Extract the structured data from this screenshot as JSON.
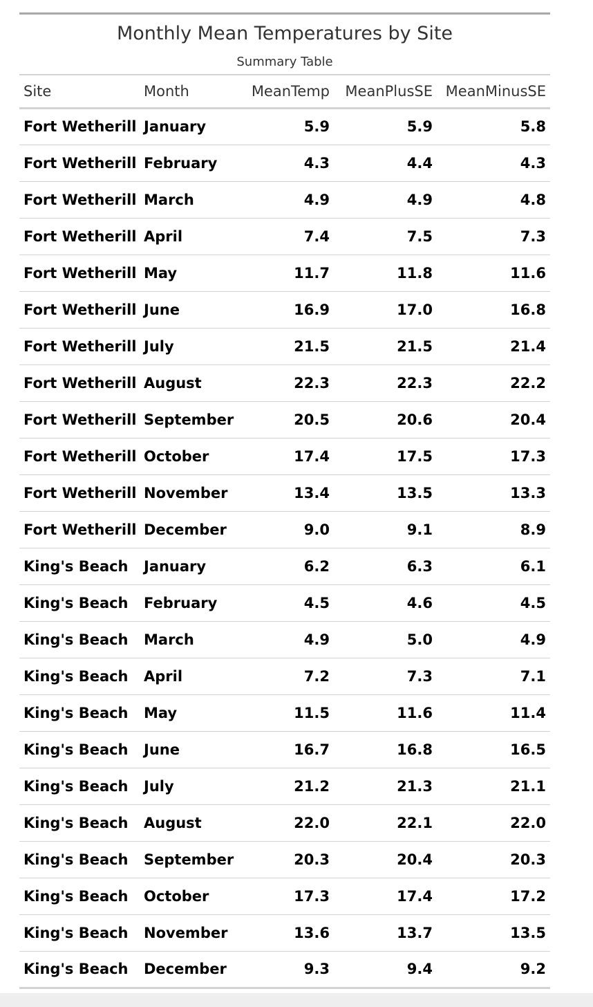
{
  "table": {
    "title": "Monthly Mean Temperatures by Site",
    "subtitle": "Summary Table",
    "columns": [
      "Site",
      "Month",
      "MeanTemp",
      "MeanPlusSE",
      "MeanMinusSE"
    ],
    "rows": [
      [
        "Fort Wetherill",
        "January",
        "5.9",
        "5.9",
        "5.8"
      ],
      [
        "Fort Wetherill",
        "February",
        "4.3",
        "4.4",
        "4.3"
      ],
      [
        "Fort Wetherill",
        "March",
        "4.9",
        "4.9",
        "4.8"
      ],
      [
        "Fort Wetherill",
        "April",
        "7.4",
        "7.5",
        "7.3"
      ],
      [
        "Fort Wetherill",
        "May",
        "11.7",
        "11.8",
        "11.6"
      ],
      [
        "Fort Wetherill",
        "June",
        "16.9",
        "17.0",
        "16.8"
      ],
      [
        "Fort Wetherill",
        "July",
        "21.5",
        "21.5",
        "21.4"
      ],
      [
        "Fort Wetherill",
        "August",
        "22.3",
        "22.3",
        "22.2"
      ],
      [
        "Fort Wetherill",
        "September",
        "20.5",
        "20.6",
        "20.4"
      ],
      [
        "Fort Wetherill",
        "October",
        "17.4",
        "17.5",
        "17.3"
      ],
      [
        "Fort Wetherill",
        "November",
        "13.4",
        "13.5",
        "13.3"
      ],
      [
        "Fort Wetherill",
        "December",
        "9.0",
        "9.1",
        "8.9"
      ],
      [
        "King's Beach",
        "January",
        "6.2",
        "6.3",
        "6.1"
      ],
      [
        "King's Beach",
        "February",
        "4.5",
        "4.6",
        "4.5"
      ],
      [
        "King's Beach",
        "March",
        "4.9",
        "5.0",
        "4.9"
      ],
      [
        "King's Beach",
        "April",
        "7.2",
        "7.3",
        "7.1"
      ],
      [
        "King's Beach",
        "May",
        "11.5",
        "11.6",
        "11.4"
      ],
      [
        "King's Beach",
        "June",
        "16.7",
        "16.8",
        "16.5"
      ],
      [
        "King's Beach",
        "July",
        "21.2",
        "21.3",
        "21.1"
      ],
      [
        "King's Beach",
        "August",
        "22.0",
        "22.1",
        "22.0"
      ],
      [
        "King's Beach",
        "September",
        "20.3",
        "20.4",
        "20.3"
      ],
      [
        "King's Beach",
        "October",
        "17.3",
        "17.4",
        "17.2"
      ],
      [
        "King's Beach",
        "November",
        "13.6",
        "13.7",
        "13.5"
      ],
      [
        "King's Beach",
        "December",
        "9.3",
        "9.4",
        "9.2"
      ]
    ]
  }
}
